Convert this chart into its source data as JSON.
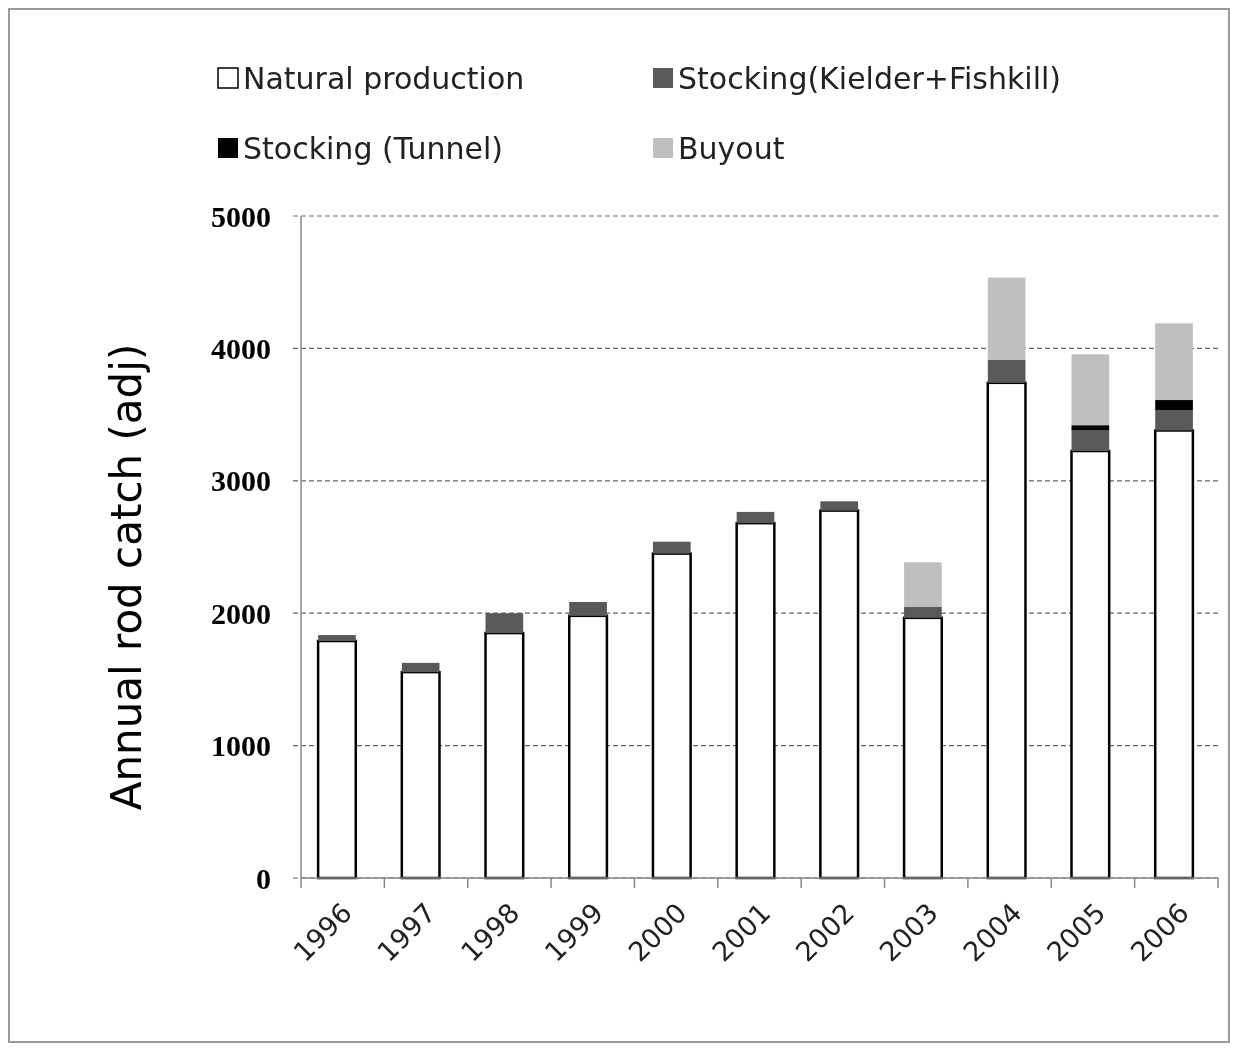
{
  "chart_data": {
    "type": "bar",
    "stacked": true,
    "ylabel": "Annual rod catch (adj)",
    "categories": [
      "1996",
      "1997",
      "1998",
      "1999",
      "2000",
      "2001",
      "2002",
      "2003",
      "2004",
      "2005",
      "2006"
    ],
    "series": [
      {
        "name": "Natural production",
        "color": "#ffffff",
        "values": [
          1790,
          1555,
          1850,
          1980,
          2450,
          2680,
          2775,
          1965,
          3740,
          3225,
          3380
        ]
      },
      {
        "name": "Stocking(Kielder+Fishkill)",
        "color": "#595959",
        "values": [
          45,
          70,
          150,
          105,
          90,
          85,
          70,
          85,
          175,
          155,
          155
        ]
      },
      {
        "name": "Stocking (Tunnel)",
        "color": "#000000",
        "values": [
          0,
          0,
          0,
          0,
          0,
          0,
          0,
          0,
          0,
          40,
          75
        ]
      },
      {
        "name": "Buyout",
        "color": "#bfbfbf",
        "values": [
          0,
          0,
          0,
          0,
          0,
          0,
          0,
          335,
          620,
          535,
          580
        ]
      }
    ],
    "ylim": [
      0,
      5000
    ],
    "yticks": [
      0,
      1000,
      2000,
      3000,
      4000,
      5000
    ],
    "grid": "y",
    "legend": "top"
  }
}
